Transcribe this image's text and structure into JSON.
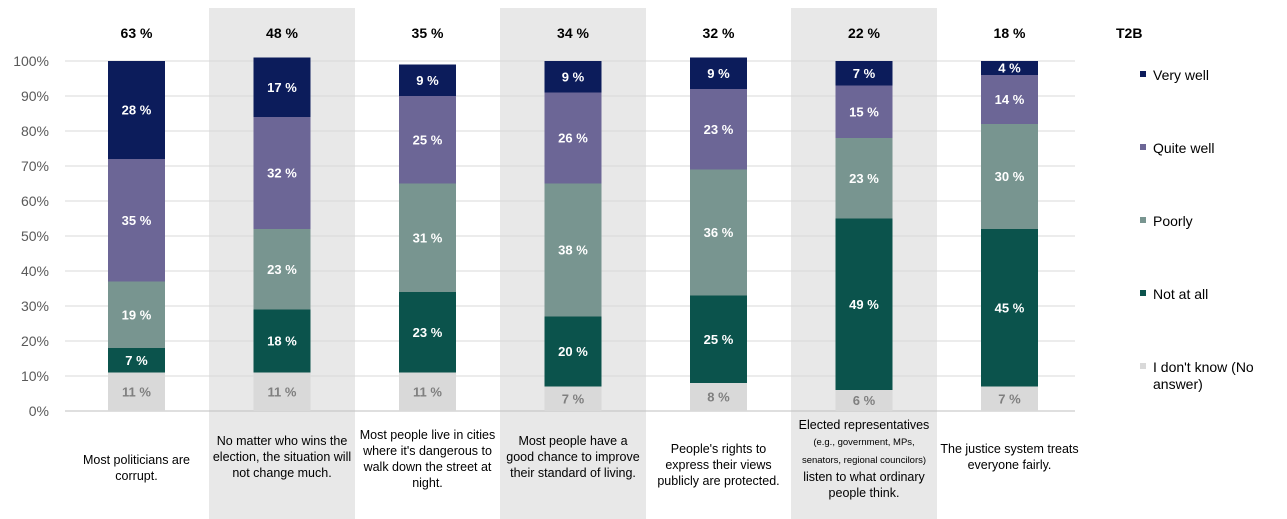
{
  "chart_data": {
    "type": "bar",
    "stacked": true,
    "ylim": [
      0,
      100
    ],
    "yticks": [
      "0%",
      "10%",
      "20%",
      "30%",
      "40%",
      "50%",
      "60%",
      "70%",
      "80%",
      "90%",
      "100%"
    ],
    "categories": [
      {
        "main": "Most politicians are corrupt.",
        "small": "",
        "rest": ""
      },
      {
        "main": "No matter who wins the election, the situation will not change much.",
        "small": "",
        "rest": ""
      },
      {
        "main": "Most people live in cities where it's dangerous to walk down the street at night.",
        "small": "",
        "rest": ""
      },
      {
        "main": "Most people have a good chance to improve their standard of living.",
        "small": "",
        "rest": ""
      },
      {
        "main": "People's rights to express their views publicly are protected.",
        "small": "",
        "rest": ""
      },
      {
        "main": "Elected representatives ",
        "small": "(e.g., government, MPs, senators, regional councilors)",
        "rest": " listen to what ordinary people think."
      },
      {
        "main": "The justice system treats everyone fairly.",
        "small": "",
        "rest": ""
      }
    ],
    "t2b_title": "T2B",
    "t2b": [
      "63 %",
      "48 %",
      "35 %",
      "34 %",
      "32 %",
      "22 %",
      "18 %"
    ],
    "series": [
      {
        "name": "I don't know (No answer)",
        "color": "#d9d9d9",
        "label_color": "#7f7f7f",
        "values": [
          11,
          11,
          11,
          7,
          8,
          6,
          7
        ]
      },
      {
        "name": "Not at all",
        "color": "#0b534c",
        "label_color": "#ffffff",
        "values": [
          7,
          18,
          23,
          20,
          25,
          49,
          45
        ]
      },
      {
        "name": "Poorly",
        "color": "#789590",
        "label_color": "#ffffff",
        "values": [
          19,
          23,
          31,
          38,
          36,
          23,
          30
        ]
      },
      {
        "name": "Quite well",
        "color": "#6c6696",
        "label_color": "#ffffff",
        "values": [
          35,
          32,
          25,
          26,
          23,
          15,
          14
        ]
      },
      {
        "name": "Very well",
        "color": "#0c1c5b",
        "label_color": "#ffffff",
        "values": [
          28,
          17,
          9,
          9,
          9,
          7,
          4
        ]
      }
    ],
    "legend_position": "right",
    "grid": true,
    "shaded_columns": [
      1,
      3,
      5
    ]
  }
}
